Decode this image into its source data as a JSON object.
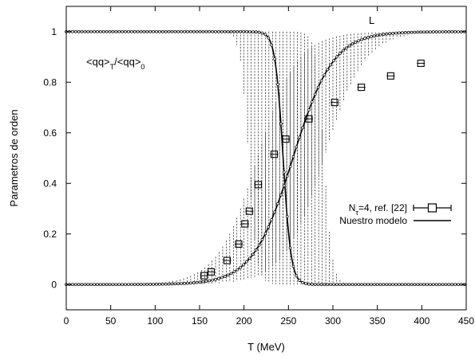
{
  "chart_data": {
    "type": "scatter",
    "xlabel": "T (MeV)",
    "ylabel": "Parametros de orden",
    "xlim": [
      0,
      450
    ],
    "ylim": [
      -0.1,
      1.1
    ],
    "xticks": [
      "0",
      "50",
      "100",
      "150",
      "200",
      "250",
      "300",
      "350",
      "400",
      "450"
    ],
    "yticks": [
      "0",
      "0.2",
      "0.4",
      "0.6",
      "0.8",
      "1"
    ],
    "panel_label": "L",
    "annotation": {
      "parts": [
        {
          "text": "<qq>",
          "style": "normal"
        },
        {
          "text": "T",
          "style": "sub"
        },
        {
          "text": "/<qq>",
          "style": "normal"
        },
        {
          "text": "0",
          "style": "sub"
        }
      ]
    },
    "legend": {
      "position": "right-middle",
      "entries": [
        {
          "label_parts": [
            {
              "text": "N",
              "style": "normal"
            },
            {
              "text": "τ",
              "style": "sub"
            },
            {
              "text": "=4, ref. [22]",
              "style": "normal"
            }
          ],
          "marker": "square-errorbar"
        },
        {
          "label_parts": [
            {
              "text": "Nuestro modelo",
              "style": "normal"
            }
          ],
          "marker": "line"
        }
      ]
    },
    "series": [
      {
        "name": "Nτ=4, ref. [22]",
        "kind": "points",
        "x": [
          155,
          163,
          181,
          194,
          201,
          206,
          216,
          234,
          247,
          273,
          302,
          332,
          365,
          399
        ],
        "y": [
          0.035,
          0.05,
          0.095,
          0.16,
          0.24,
          0.29,
          0.395,
          0.515,
          0.575,
          0.655,
          0.72,
          0.78,
          0.825,
          0.875
        ]
      },
      {
        "name": "Nuestro modelo",
        "kind": "lines",
        "curves": [
          {
            "id": "chiral_condensate",
            "x0": 0,
            "x1": 450,
            "start": 1.0,
            "end": 0.0,
            "tc": 244,
            "width": 9
          },
          {
            "id": "polyakov_loop",
            "x0": 0,
            "x1": 450,
            "start": 0.0,
            "end": 1.0,
            "tc": 255,
            "width": 45
          }
        ]
      },
      {
        "kind": "uncertainty_band",
        "bands": [
          {
            "id": "band_condensate",
            "start": 1.0,
            "end": 0.0,
            "tc_low": 205,
            "tc_high": 290,
            "width": 9
          },
          {
            "id": "band_loop",
            "start": 0.0,
            "end": 1.0,
            "tc_low": 215,
            "tc_high": 290,
            "width": 45
          }
        ]
      }
    ]
  }
}
